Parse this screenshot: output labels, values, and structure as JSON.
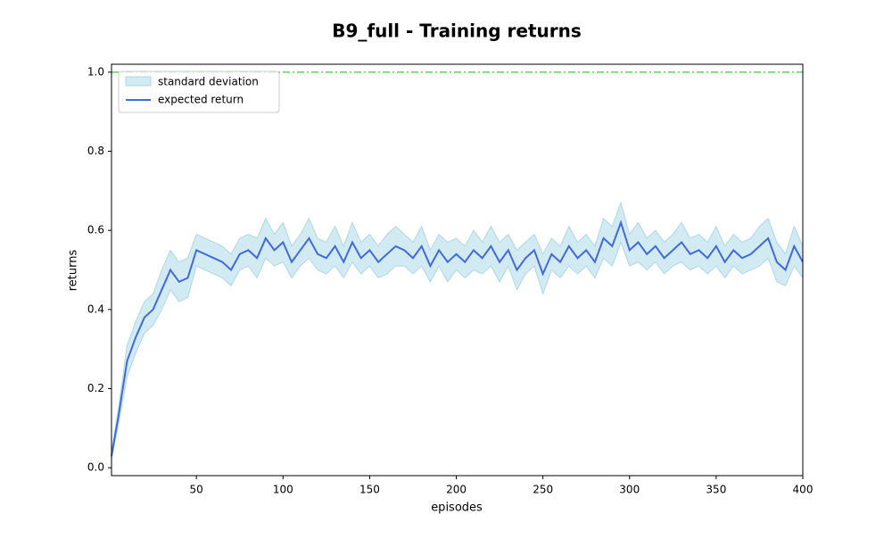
{
  "chart_data": {
    "type": "line",
    "title": "B9_full - Training returns",
    "x_label": "episodes",
    "y_label": "returns",
    "x": [
      1,
      5,
      10,
      15,
      20,
      25,
      30,
      35,
      40,
      45,
      50,
      55,
      60,
      65,
      70,
      75,
      80,
      85,
      90,
      95,
      100,
      105,
      110,
      115,
      120,
      125,
      130,
      135,
      140,
      145,
      150,
      155,
      160,
      165,
      170,
      175,
      180,
      185,
      190,
      195,
      200,
      205,
      210,
      215,
      220,
      225,
      230,
      235,
      240,
      245,
      250,
      255,
      260,
      265,
      270,
      275,
      280,
      285,
      290,
      295,
      300,
      305,
      310,
      315,
      320,
      325,
      330,
      335,
      340,
      345,
      350,
      355,
      360,
      365,
      370,
      375,
      380,
      385,
      390,
      395,
      400
    ],
    "series": [
      {
        "name": "expected return",
        "color": "#4169e1",
        "values": [
          0.03,
          0.13,
          0.27,
          0.33,
          0.38,
          0.4,
          0.45,
          0.5,
          0.47,
          0.48,
          0.55,
          0.54,
          0.53,
          0.52,
          0.5,
          0.54,
          0.55,
          0.53,
          0.58,
          0.55,
          0.57,
          0.52,
          0.55,
          0.58,
          0.54,
          0.53,
          0.56,
          0.52,
          0.57,
          0.53,
          0.55,
          0.52,
          0.54,
          0.56,
          0.55,
          0.53,
          0.56,
          0.51,
          0.55,
          0.52,
          0.54,
          0.52,
          0.55,
          0.53,
          0.56,
          0.52,
          0.55,
          0.5,
          0.53,
          0.55,
          0.49,
          0.54,
          0.52,
          0.56,
          0.53,
          0.55,
          0.52,
          0.58,
          0.56,
          0.62,
          0.55,
          0.57,
          0.54,
          0.56,
          0.53,
          0.55,
          0.57,
          0.54,
          0.55,
          0.53,
          0.56,
          0.52,
          0.55,
          0.53,
          0.54,
          0.56,
          0.58,
          0.52,
          0.5,
          0.56,
          0.52
        ]
      }
    ],
    "band": {
      "name": "standard deviation",
      "color": "#add8e6",
      "values": [
        0.01,
        0.02,
        0.04,
        0.04,
        0.04,
        0.04,
        0.05,
        0.05,
        0.05,
        0.05,
        0.04,
        0.04,
        0.04,
        0.04,
        0.04,
        0.04,
        0.04,
        0.05,
        0.05,
        0.04,
        0.05,
        0.04,
        0.04,
        0.05,
        0.04,
        0.04,
        0.05,
        0.04,
        0.05,
        0.04,
        0.04,
        0.04,
        0.05,
        0.05,
        0.04,
        0.04,
        0.05,
        0.04,
        0.04,
        0.05,
        0.04,
        0.04,
        0.05,
        0.04,
        0.05,
        0.05,
        0.04,
        0.05,
        0.04,
        0.04,
        0.05,
        0.04,
        0.04,
        0.05,
        0.04,
        0.04,
        0.04,
        0.05,
        0.05,
        0.05,
        0.04,
        0.05,
        0.04,
        0.04,
        0.04,
        0.04,
        0.05,
        0.04,
        0.04,
        0.04,
        0.05,
        0.04,
        0.04,
        0.04,
        0.04,
        0.05,
        0.05,
        0.05,
        0.04,
        0.05,
        0.04
      ]
    },
    "hline": {
      "value": 1.0,
      "color": "#32cd32"
    },
    "xlim": [
      1,
      400
    ],
    "ylim": [
      -0.02,
      1.02
    ],
    "xticks": [
      50,
      100,
      150,
      200,
      250,
      300,
      350,
      400
    ],
    "yticks": [
      {
        "value": 0,
        "label": "0.0"
      },
      0.2,
      0.4,
      0.6,
      0.8,
      {
        "value": 1,
        "label": "1.0"
      }
    ],
    "legend": "upper left"
  }
}
